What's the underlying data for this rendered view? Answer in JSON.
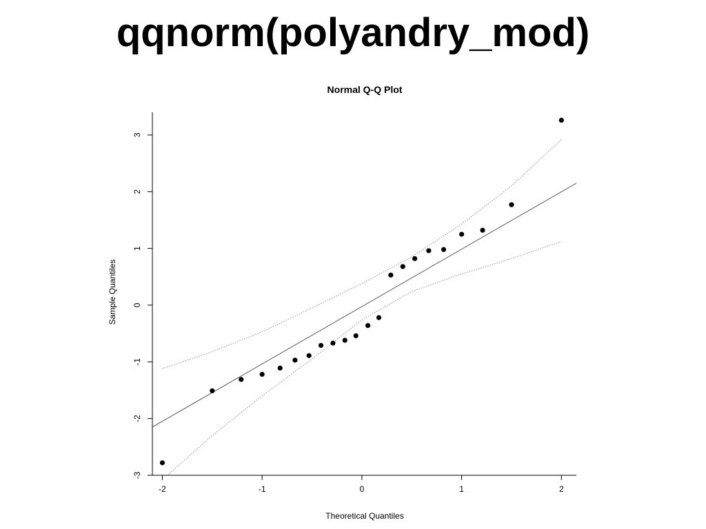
{
  "slide": {
    "title": "qqnorm(polyandry_mod)"
  },
  "chart_data": {
    "type": "scatter",
    "title": "Normal Q-Q Plot",
    "xlabel": "Theoretical Quantiles",
    "ylabel": "Sample Quantiles",
    "xlim": [
      -2.1,
      2.15
    ],
    "ylim": [
      -3.0,
      3.4
    ],
    "x_ticks": [
      -2,
      -1,
      0,
      1,
      2
    ],
    "y_ticks": [
      -3,
      -2,
      -1,
      0,
      1,
      2,
      3
    ],
    "x_tick_labels": [
      "-2",
      "-1",
      "0",
      "1",
      "2"
    ],
    "y_tick_labels": [
      "-3",
      "-2",
      "-1",
      "0",
      "1",
      "2",
      "3"
    ],
    "grid": false,
    "legend": "none",
    "point_color": "#000000",
    "line_color": "#555555",
    "band_color": "#888888",
    "points": {
      "x": [
        -2.0,
        -1.5,
        -1.21,
        -1.0,
        -0.82,
        -0.67,
        -0.53,
        -0.41,
        -0.29,
        -0.17,
        -0.06,
        0.06,
        0.17,
        0.29,
        0.41,
        0.53,
        0.67,
        0.82,
        1.0,
        1.21,
        1.5,
        2.0
      ],
      "y": [
        -2.78,
        -1.51,
        -1.31,
        -1.22,
        -1.11,
        -0.97,
        -0.89,
        -0.71,
        -0.67,
        -0.62,
        -0.54,
        -0.36,
        -0.22,
        0.53,
        0.68,
        0.82,
        0.96,
        0.98,
        1.25,
        1.32,
        1.77,
        3.26
      ]
    },
    "reference_line": {
      "x": [
        -2.1,
        2.15
      ],
      "y": [
        -2.15,
        2.15
      ]
    },
    "confidence_bands": {
      "upper": {
        "x": [
          -2.0,
          -1.5,
          -1.0,
          -0.5,
          0.0,
          0.5,
          1.0,
          1.5,
          2.0
        ],
        "y": [
          -1.12,
          -0.82,
          -0.47,
          -0.05,
          0.38,
          0.85,
          1.43,
          2.1,
          2.92
        ]
      },
      "lower": {
        "x": [
          -2.0,
          -1.5,
          -1.0,
          -0.5,
          0.0,
          0.5,
          1.0,
          1.5,
          2.0
        ],
        "y": [
          -3.08,
          -2.3,
          -1.6,
          -0.95,
          -0.26,
          0.24,
          0.55,
          0.82,
          1.12
        ]
      }
    }
  }
}
